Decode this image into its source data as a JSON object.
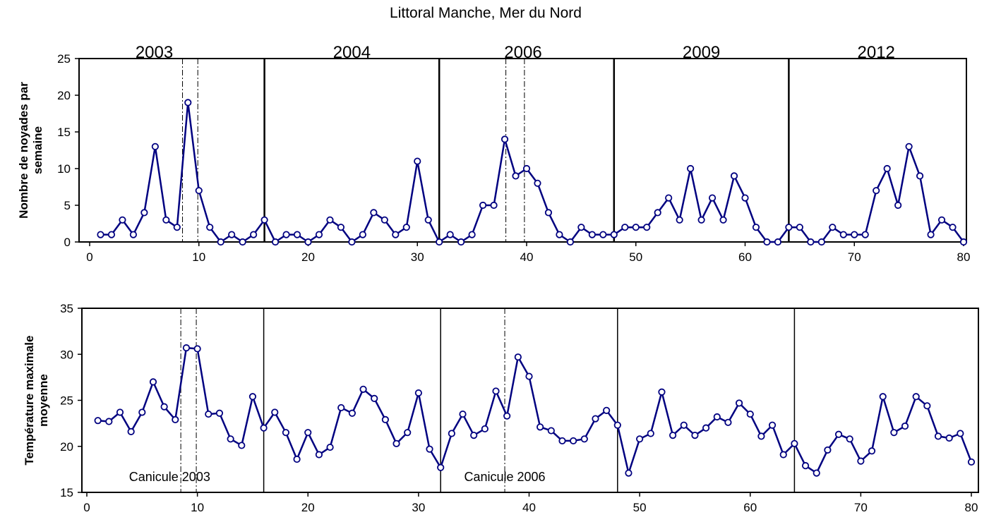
{
  "title": "Littoral Manche, Mer du Nord",
  "colors": {
    "series": "#000080",
    "marker_fill": "#ffffff",
    "frame": "#000000"
  },
  "chart_data": [
    {
      "type": "line",
      "name": "noyades",
      "ylabel": "Nombre de noyades par semaine",
      "xlim": [
        0,
        80
      ],
      "ylim": [
        0,
        25
      ],
      "xticks": [
        0,
        10,
        20,
        30,
        40,
        50,
        60,
        70,
        80
      ],
      "yticks": [
        0,
        5,
        10,
        15,
        20,
        25
      ],
      "grid": false,
      "years": [
        "2003",
        "2004",
        "2006",
        "2009",
        "2012"
      ],
      "year_boundaries": [
        16,
        32,
        48,
        64
      ],
      "dashed_markers": [
        8.5,
        9.9,
        38.1,
        39.8
      ],
      "x": [
        1,
        2,
        3,
        4,
        5,
        6,
        7,
        8,
        9,
        10,
        11,
        12,
        13,
        14,
        15,
        16,
        17,
        18,
        19,
        20,
        21,
        22,
        23,
        24,
        25,
        26,
        27,
        28,
        29,
        30,
        31,
        32,
        33,
        34,
        35,
        36,
        37,
        38,
        39,
        40,
        41,
        42,
        43,
        44,
        45,
        46,
        47,
        48,
        49,
        50,
        51,
        52,
        53,
        54,
        55,
        56,
        57,
        58,
        59,
        60,
        61,
        62,
        63,
        64,
        65,
        66,
        67,
        68,
        69,
        70,
        71,
        72,
        73,
        74,
        75,
        76,
        77,
        78,
        79,
        80
      ],
      "y": [
        1,
        1,
        3,
        1,
        4,
        13,
        3,
        2,
        19,
        7,
        2,
        0,
        1,
        0,
        1,
        3,
        0,
        1,
        1,
        0,
        1,
        3,
        2,
        0,
        1,
        4,
        3,
        1,
        2,
        11,
        3,
        0,
        1,
        0,
        1,
        5,
        5,
        14,
        9,
        10,
        8,
        4,
        1,
        0,
        2,
        1,
        1,
        1,
        2,
        2,
        2,
        4,
        6,
        3,
        10,
        3,
        6,
        3,
        9,
        6,
        2,
        0,
        0,
        2,
        2,
        0,
        0,
        2,
        1,
        1,
        1,
        7,
        10,
        5,
        13,
        9,
        1,
        3,
        2,
        0
      ]
    },
    {
      "type": "line",
      "name": "temperature",
      "ylabel": "Température maximale moyenne",
      "xlim": [
        0,
        80
      ],
      "ylim": [
        15,
        35
      ],
      "xticks": [
        0,
        10,
        20,
        30,
        40,
        50,
        60,
        70,
        80
      ],
      "yticks": [
        15,
        20,
        25,
        30,
        35
      ],
      "grid": false,
      "year_boundaries": [
        16,
        32,
        48,
        64
      ],
      "dashed_markers": [
        8.5,
        9.9,
        37.8
      ],
      "annotations": [
        {
          "text": "Canicule 2003",
          "x": 8,
          "y": 16.7
        },
        {
          "text": "Canicule 2006",
          "x": 37.8,
          "y": 16.7
        }
      ],
      "x": [
        1,
        2,
        3,
        4,
        5,
        6,
        7,
        8,
        9,
        10,
        11,
        12,
        13,
        14,
        15,
        16,
        17,
        18,
        19,
        20,
        21,
        22,
        23,
        24,
        25,
        26,
        27,
        28,
        29,
        30,
        31,
        32,
        33,
        34,
        35,
        36,
        37,
        38,
        39,
        40,
        41,
        42,
        43,
        44,
        45,
        46,
        47,
        48,
        49,
        50,
        51,
        52,
        53,
        54,
        55,
        56,
        57,
        58,
        59,
        60,
        61,
        62,
        63,
        64,
        65,
        66,
        67,
        68,
        69,
        70,
        71,
        72,
        73,
        74,
        75,
        76,
        77,
        78,
        79,
        80
      ],
      "y": [
        22.8,
        22.7,
        23.7,
        21.6,
        23.7,
        27.0,
        24.3,
        22.9,
        30.7,
        30.6,
        23.5,
        23.6,
        20.8,
        20.1,
        25.4,
        22.0,
        23.7,
        21.5,
        18.6,
        21.5,
        19.1,
        19.9,
        24.2,
        23.6,
        26.2,
        25.2,
        22.9,
        20.3,
        21.5,
        25.8,
        19.7,
        17.7,
        21.4,
        23.5,
        21.2,
        21.9,
        26.0,
        23.3,
        29.7,
        27.6,
        22.1,
        21.7,
        20.6,
        20.6,
        20.8,
        23.0,
        23.9,
        22.3,
        17.1,
        20.8,
        21.4,
        25.9,
        21.2,
        22.3,
        21.2,
        22.0,
        23.2,
        22.6,
        24.7,
        23.5,
        21.1,
        22.3,
        19.1,
        20.3,
        17.9,
        17.1,
        19.6,
        21.3,
        20.8,
        18.4,
        19.5,
        25.4,
        21.5,
        22.2,
        25.4,
        24.4,
        21.1,
        20.9,
        21.4,
        18.3
      ]
    }
  ]
}
